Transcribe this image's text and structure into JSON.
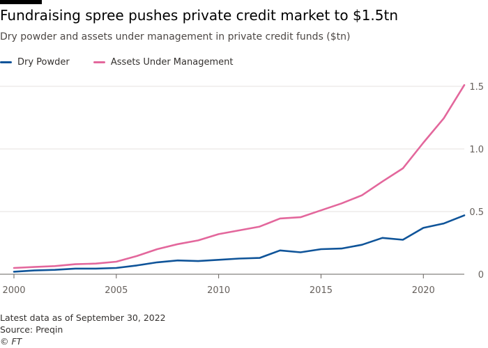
{
  "header": {
    "title": "Fundraising spree pushes private credit market to $1.5tn",
    "subtitle": "Dry powder and assets under management in private credit funds ($tn)"
  },
  "footer": {
    "note": "Latest data as of September 30, 2022",
    "source": "Source: Preqin",
    "credit": "© FT"
  },
  "chart_data": {
    "type": "line",
    "title": "Fundraising spree pushes private credit market to $1.5tn",
    "subtitle": "Dry powder and assets under management in private credit funds ($tn)",
    "xlabel": "",
    "ylabel": "",
    "x": [
      2000,
      2001,
      2002,
      2003,
      2004,
      2005,
      2006,
      2007,
      2008,
      2009,
      2010,
      2011,
      2012,
      2013,
      2014,
      2015,
      2016,
      2017,
      2018,
      2019,
      2020,
      2021,
      2022
    ],
    "xlim": [
      2000,
      2022
    ],
    "ylim": [
      0,
      1.5
    ],
    "xticks": [
      2000,
      2005,
      2010,
      2015,
      2020
    ],
    "xtick_labels": [
      "2000",
      "2005",
      "2010",
      "2015",
      "2020"
    ],
    "yticks": [
      0,
      0.5,
      1.0,
      1.5
    ],
    "ytick_labels": [
      "0",
      "0.5",
      "1.0",
      "1.5"
    ],
    "grid": true,
    "legend_position": "top-left",
    "series": [
      {
        "name": "Dry Powder",
        "color": "#0f5499",
        "values": [
          0.02,
          0.03,
          0.035,
          0.045,
          0.045,
          0.05,
          0.07,
          0.095,
          0.11,
          0.105,
          0.115,
          0.125,
          0.13,
          0.19,
          0.175,
          0.2,
          0.205,
          0.235,
          0.29,
          0.275,
          0.37,
          0.405,
          0.47
        ]
      },
      {
        "name": "Assets Under Management",
        "color": "#e3679c",
        "values": [
          0.05,
          0.058,
          0.065,
          0.08,
          0.085,
          0.1,
          0.145,
          0.2,
          0.24,
          0.27,
          0.32,
          0.35,
          0.38,
          0.445,
          0.455,
          0.51,
          0.565,
          0.63,
          0.74,
          0.845,
          1.05,
          1.245,
          1.51
        ]
      }
    ]
  }
}
